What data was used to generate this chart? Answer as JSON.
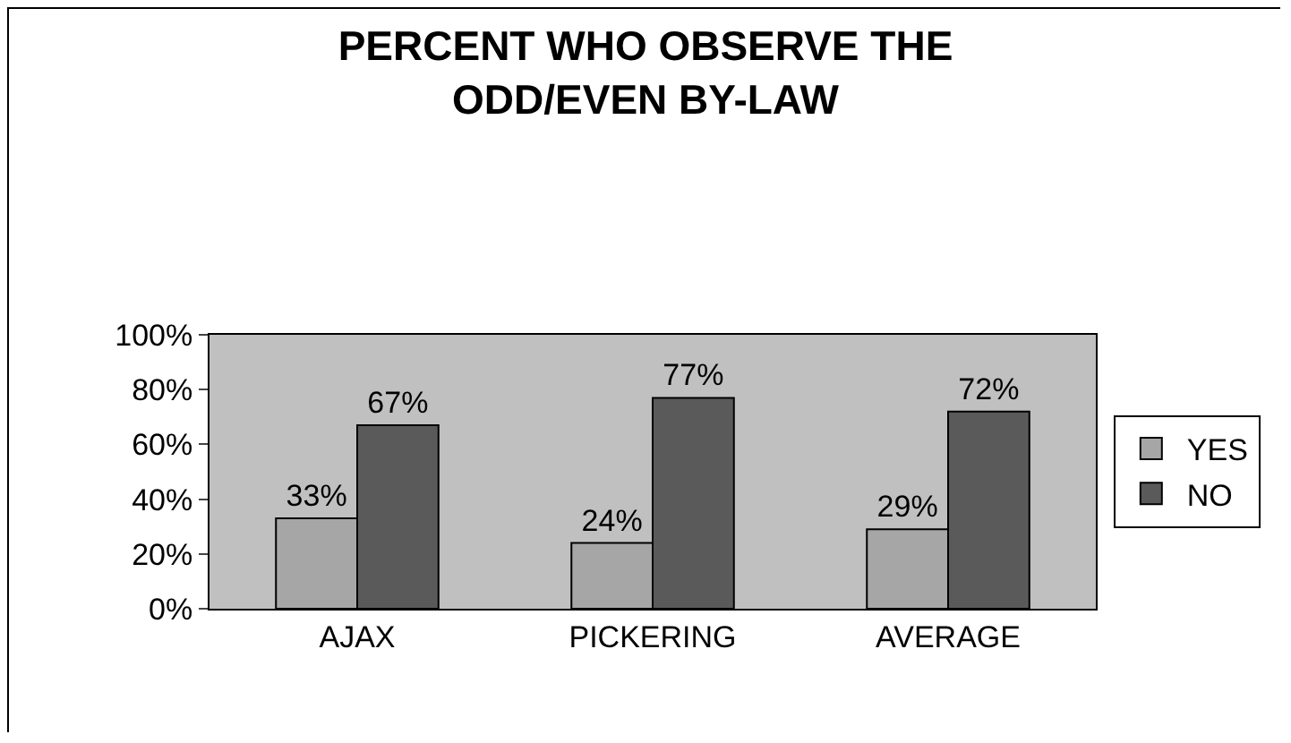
{
  "chart_data": {
    "type": "bar",
    "title": "PERCENT WHO OBSERVE THE ODD/EVEN BY-LAW",
    "categories": [
      "AJAX",
      "PICKERING",
      "AVERAGE"
    ],
    "series": [
      {
        "name": "YES",
        "color": "#a6a6a6",
        "values": [
          33,
          24,
          29
        ],
        "value_labels": [
          "33%",
          "24%",
          "29%"
        ]
      },
      {
        "name": "NO",
        "color": "#5a5a5a",
        "values": [
          67,
          77,
          72
        ],
        "value_labels": [
          "67%",
          "77%",
          "72%"
        ]
      }
    ],
    "ylim": [
      0,
      100
    ],
    "yticks": [
      {
        "value": 0,
        "label": "0%"
      },
      {
        "value": 20,
        "label": "20%"
      },
      {
        "value": 40,
        "label": "40%"
      },
      {
        "value": 60,
        "label": "60%"
      },
      {
        "value": 80,
        "label": "80%"
      },
      {
        "value": 100,
        "label": "100%"
      }
    ],
    "legend": "right"
  }
}
